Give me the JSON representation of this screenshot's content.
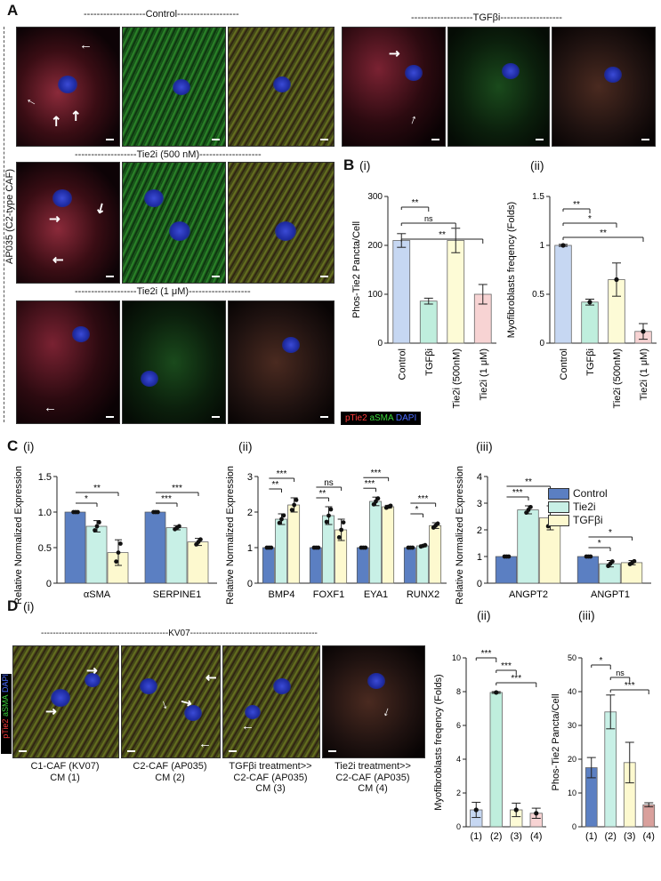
{
  "panelA": {
    "letter": "A",
    "side_label": "AP035 (C2-type CAF)",
    "control": "-------------------Control-------------------",
    "tgf": "-------------------TGFβi-------------------",
    "tie2i_500": "-------------------Tie2i (500 nM)-------------------",
    "tie2i_1": "-------------------Tie2i (1 μM)-------------------",
    "legend": {
      "ptie2": "pTie2",
      "asma": "aSMA",
      "dapi": "DAPI"
    }
  },
  "panelB": {
    "letter": "B",
    "i_label": "(i)",
    "ii_label": "(ii)",
    "chart_data": [
      {
        "type": "bar",
        "ylabel": "Phos-Tie2 Pancta/Cell",
        "categories": [
          "Control",
          "TGFβi",
          "Tie2i (500nM)",
          "Tie2i (1 μM)"
        ],
        "values": [
          210,
          86,
          210,
          100
        ],
        "errors": [
          14,
          6,
          25,
          20
        ],
        "ylim": [
          0,
          300
        ],
        "yticks": [
          0,
          100,
          200,
          300
        ],
        "colors": [
          "#c6d7f2",
          "#bfeedd",
          "#fdfbd6",
          "#f7d3d3"
        ],
        "significance": [
          {
            "pair": [
              0,
              1
            ],
            "label": "**"
          },
          {
            "pair": [
              0,
              2
            ],
            "label": "ns"
          },
          {
            "pair": [
              0,
              3
            ],
            "label": "**"
          }
        ]
      },
      {
        "type": "bar",
        "ylabel": "Myofibroblasts freqency (Folds)",
        "categories": [
          "Control",
          "TGFβi",
          "Tie2i (500nM)",
          "Tie2i (1 μM)"
        ],
        "values": [
          1.0,
          0.42,
          0.65,
          0.12
        ],
        "errors": [
          0.01,
          0.03,
          0.17,
          0.08
        ],
        "ylim": [
          0,
          1.5
        ],
        "yticks": [
          0,
          0.5,
          1,
          1.5
        ],
        "ytick_labels": [
          "0",
          "0.5",
          "1",
          "1.5"
        ],
        "colors": [
          "#c6d7f2",
          "#bfeedd",
          "#fdfbd6",
          "#f7d3d3"
        ],
        "significance": [
          {
            "pair": [
              0,
              1
            ],
            "label": "**"
          },
          {
            "pair": [
              0,
              2
            ],
            "label": "*"
          },
          {
            "pair": [
              0,
              3
            ],
            "label": "**"
          }
        ]
      }
    ]
  },
  "panelC": {
    "letter": "C",
    "i_label": "(i)",
    "ii_label": "(ii)",
    "iii_label": "(iii)",
    "legend": [
      "Control",
      "Tie2i",
      "TGFβi"
    ],
    "chart_data": [
      {
        "type": "bar",
        "ylabel": "Relative Normalized Expression",
        "categories": [
          "αSMA",
          "SERPINE1"
        ],
        "series": [
          {
            "name": "Control",
            "values": [
              1.0,
              1.0
            ],
            "errors": [
              0,
              0
            ]
          },
          {
            "name": "Tie2i",
            "values": [
              0.8,
              0.78
            ],
            "errors": [
              0.08,
              0.03
            ]
          },
          {
            "name": "TGFβi",
            "values": [
              0.43,
              0.58
            ],
            "errors": [
              0.18,
              0.05
            ]
          }
        ],
        "ylim": [
          0,
          1.5
        ],
        "yticks": [
          0,
          0.5,
          1,
          1.5
        ],
        "ytick_labels": [
          "0",
          "0.5",
          "1.0",
          "1.5"
        ],
        "significance": [
          {
            "cat": 0,
            "pair": [
              0,
              1
            ],
            "label": "*"
          },
          {
            "cat": 0,
            "pair": [
              0,
              2
            ],
            "label": "**"
          },
          {
            "cat": 1,
            "pair": [
              0,
              1
            ],
            "label": "***"
          },
          {
            "cat": 1,
            "pair": [
              0,
              2
            ],
            "label": "***"
          }
        ]
      },
      {
        "type": "bar",
        "ylabel": "Relative Normalized Expression",
        "categories": [
          "BMP4",
          "FOXF1",
          "EYA1",
          "RUNX2"
        ],
        "series": [
          {
            "name": "Control",
            "values": [
              1.0,
              1.0,
              1.0,
              1.0
            ],
            "errors": [
              0,
              0,
              0,
              0
            ]
          },
          {
            "name": "Tie2i",
            "values": [
              1.8,
              1.9,
              2.3,
              1.05
            ],
            "errors": [
              0.15,
              0.25,
              0.12,
              0.03
            ]
          },
          {
            "name": "TGFβi",
            "values": [
              2.2,
              1.5,
              2.15,
              1.62
            ],
            "errors": [
              0.2,
              0.3,
              0.04,
              0.08
            ]
          }
        ],
        "ylim": [
          0,
          3
        ],
        "yticks": [
          0,
          1,
          2,
          3
        ],
        "significance": [
          {
            "cat": 0,
            "pair": [
              0,
              1
            ],
            "label": "**"
          },
          {
            "cat": 0,
            "pair": [
              0,
              2
            ],
            "label": "***"
          },
          {
            "cat": 1,
            "pair": [
              0,
              1
            ],
            "label": "**"
          },
          {
            "cat": 1,
            "pair": [
              0,
              2
            ],
            "label": "ns"
          },
          {
            "cat": 2,
            "pair": [
              0,
              1
            ],
            "label": "***"
          },
          {
            "cat": 2,
            "pair": [
              0,
              2
            ],
            "label": "***"
          },
          {
            "cat": 3,
            "pair": [
              0,
              1
            ],
            "label": "*"
          },
          {
            "cat": 3,
            "pair": [
              0,
              2
            ],
            "label": "***"
          }
        ]
      },
      {
        "type": "bar",
        "ylabel": "Relative Normalized Expression",
        "categories": [
          "ANGPT2",
          "ANGPT1"
        ],
        "series": [
          {
            "name": "Control",
            "values": [
              1.0,
              1.0
            ],
            "errors": [
              0,
              0
            ]
          },
          {
            "name": "Tie2i",
            "values": [
              2.75,
              0.73
            ],
            "errors": [
              0.15,
              0.12
            ]
          },
          {
            "name": "TGFβi",
            "values": [
              2.45,
              0.77
            ],
            "errors": [
              0.45,
              0.08
            ]
          }
        ],
        "ylim": [
          0,
          4
        ],
        "yticks": [
          0,
          1,
          2,
          3,
          4
        ],
        "significance": [
          {
            "cat": 0,
            "pair": [
              0,
              1
            ],
            "label": "***"
          },
          {
            "cat": 0,
            "pair": [
              0,
              2
            ],
            "label": "**"
          },
          {
            "cat": 1,
            "pair": [
              0,
              1
            ],
            "label": "*"
          },
          {
            "cat": 1,
            "pair": [
              0,
              2
            ],
            "label": "*"
          }
        ]
      }
    ],
    "series_colors": [
      "#5b7fc2",
      "#c8f0e6",
      "#fdf9cf"
    ]
  },
  "panelD": {
    "letter": "D",
    "i_label": "(i)",
    "ii_label": "(ii)",
    "iii_label": "(iii)",
    "kv_label": "-------------------------------------------KV07-------------------------------------------",
    "legend": {
      "ptie2": "pTie2",
      "asma": "aSMA",
      "dapi": "DAPI"
    },
    "captions": [
      {
        "line1": "C1-CAF (KV07)",
        "line2": "CM (1)"
      },
      {
        "line1": "C2-CAF (AP035)",
        "line2": "CM (2)"
      },
      {
        "line1": "TGFβi treatment>>",
        "line2": "C2-CAF (AP035)",
        "line3": "CM (3)"
      },
      {
        "line1": "Tie2i treatment>>",
        "line2": "C2-CAF (AP035)",
        "line3": "CM (4)"
      }
    ],
    "chart_data": [
      {
        "type": "bar",
        "ylabel": "Myofibroblasts freqency (Folds)",
        "categories": [
          "(1)",
          "(2)",
          "(3)",
          "(4)"
        ],
        "values": [
          1.0,
          7.95,
          1.0,
          0.8
        ],
        "errors": [
          0.45,
          0.05,
          0.4,
          0.3
        ],
        "ylim": [
          0,
          10
        ],
        "yticks": [
          0,
          2,
          4,
          6,
          8,
          10
        ],
        "colors": [
          "#c6d7f2",
          "#bfeedd",
          "#fdfbd6",
          "#f7d3d3"
        ],
        "significance": [
          {
            "pair": [
              0,
              1
            ],
            "label": "***"
          },
          {
            "pair": [
              1,
              2
            ],
            "label": "***"
          },
          {
            "pair": [
              1,
              3
            ],
            "label": "***"
          }
        ]
      },
      {
        "type": "bar",
        "ylabel": "Phos-Tie2 Pancta/Cell",
        "categories": [
          "(1)",
          "(2)",
          "(3)",
          "(4)"
        ],
        "values": [
          17.5,
          34,
          19,
          6.5
        ],
        "errors": [
          3,
          5,
          6,
          0.6
        ],
        "ylim": [
          0,
          50
        ],
        "yticks": [
          0,
          10,
          20,
          30,
          40,
          50
        ],
        "colors": [
          "#5b7fc2",
          "#c8f0e6",
          "#fdf9cf",
          "#d9a09c"
        ],
        "significance": [
          {
            "pair": [
              0,
              1
            ],
            "label": "*"
          },
          {
            "pair": [
              1,
              2
            ],
            "label": "ns"
          },
          {
            "pair": [
              1,
              3
            ],
            "label": "***"
          }
        ]
      }
    ]
  }
}
